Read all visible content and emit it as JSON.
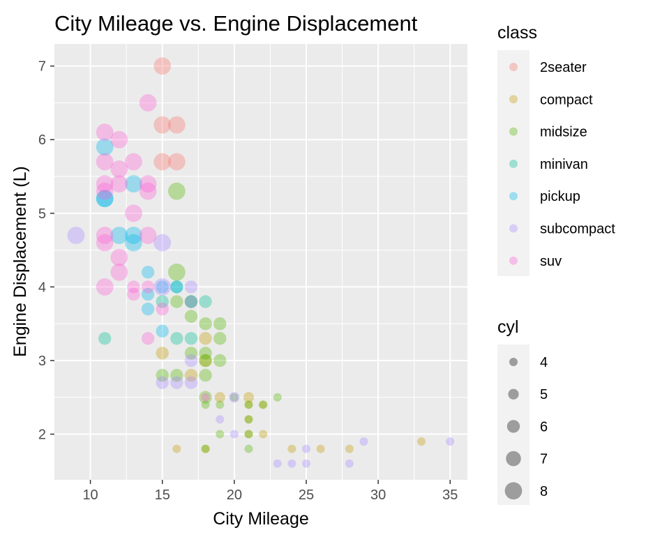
{
  "chart_data": {
    "type": "scatter",
    "title": "City Mileage vs. Engine Displacement",
    "xlabel": "City Mileage",
    "ylabel": "Engine Displacement (L)",
    "xlim": [
      7.5,
      36.2
    ],
    "ylim": [
      1.38,
      7.3
    ],
    "x_ticks": [
      10,
      15,
      20,
      25,
      30,
      35
    ],
    "y_ticks": [
      2,
      3,
      4,
      5,
      6,
      7
    ],
    "grid": true,
    "point_alpha": 0.35,
    "color_legend": {
      "title": "class",
      "entries": [
        {
          "name": "2seater",
          "color": "#F8766D"
        },
        {
          "name": "compact",
          "color": "#C49A00"
        },
        {
          "name": "midsize",
          "color": "#53B400"
        },
        {
          "name": "minivan",
          "color": "#00C094"
        },
        {
          "name": "pickup",
          "color": "#00B6EB"
        },
        {
          "name": "subcompact",
          "color": "#A58AFF"
        },
        {
          "name": "suv",
          "color": "#FB61D7"
        }
      ]
    },
    "size_legend": {
      "title": "cyl",
      "values": [
        4,
        5,
        6,
        7,
        8
      ]
    },
    "points": [
      {
        "x": 15,
        "y": 7.0,
        "class": "2seater",
        "cyl": 8
      },
      {
        "x": 15,
        "y": 6.2,
        "class": "2seater",
        "cyl": 8
      },
      {
        "x": 16,
        "y": 6.2,
        "class": "2seater",
        "cyl": 8
      },
      {
        "x": 15,
        "y": 5.7,
        "class": "2seater",
        "cyl": 8
      },
      {
        "x": 16,
        "y": 5.7,
        "class": "2seater",
        "cyl": 8
      },
      {
        "x": 16,
        "y": 1.8,
        "class": "compact",
        "cyl": 4
      },
      {
        "x": 18,
        "y": 1.8,
        "class": "compact",
        "cyl": 4
      },
      {
        "x": 21,
        "y": 2.0,
        "class": "compact",
        "cyl": 4
      },
      {
        "x": 22,
        "y": 2.0,
        "class": "compact",
        "cyl": 4
      },
      {
        "x": 21,
        "y": 2.2,
        "class": "compact",
        "cyl": 4
      },
      {
        "x": 21,
        "y": 2.4,
        "class": "compact",
        "cyl": 4
      },
      {
        "x": 22,
        "y": 2.4,
        "class": "compact",
        "cyl": 4
      },
      {
        "x": 24,
        "y": 1.8,
        "class": "compact",
        "cyl": 4
      },
      {
        "x": 26,
        "y": 1.8,
        "class": "compact",
        "cyl": 4
      },
      {
        "x": 28,
        "y": 1.8,
        "class": "compact",
        "cyl": 4
      },
      {
        "x": 33,
        "y": 1.9,
        "class": "compact",
        "cyl": 4
      },
      {
        "x": 19,
        "y": 2.5,
        "class": "compact",
        "cyl": 5
      },
      {
        "x": 21,
        "y": 2.5,
        "class": "compact",
        "cyl": 5
      },
      {
        "x": 15,
        "y": 3.1,
        "class": "compact",
        "cyl": 6
      },
      {
        "x": 17,
        "y": 2.8,
        "class": "compact",
        "cyl": 6
      },
      {
        "x": 18,
        "y": 3.3,
        "class": "compact",
        "cyl": 6
      },
      {
        "x": 18,
        "y": 3.0,
        "class": "compact",
        "cyl": 6
      },
      {
        "x": 18,
        "y": 2.4,
        "class": "midsize",
        "cyl": 4
      },
      {
        "x": 19,
        "y": 2.4,
        "class": "midsize",
        "cyl": 4
      },
      {
        "x": 21,
        "y": 2.4,
        "class": "midsize",
        "cyl": 4
      },
      {
        "x": 20,
        "y": 2.5,
        "class": "midsize",
        "cyl": 4
      },
      {
        "x": 23,
        "y": 2.5,
        "class": "midsize",
        "cyl": 4
      },
      {
        "x": 22,
        "y": 2.4,
        "class": "midsize",
        "cyl": 4
      },
      {
        "x": 19,
        "y": 2.0,
        "class": "midsize",
        "cyl": 4
      },
      {
        "x": 21,
        "y": 2.0,
        "class": "midsize",
        "cyl": 4
      },
      {
        "x": 18,
        "y": 1.8,
        "class": "midsize",
        "cyl": 4
      },
      {
        "x": 21,
        "y": 1.8,
        "class": "midsize",
        "cyl": 4
      },
      {
        "x": 21,
        "y": 2.2,
        "class": "midsize",
        "cyl": 4
      },
      {
        "x": 15,
        "y": 2.8,
        "class": "midsize",
        "cyl": 6
      },
      {
        "x": 16,
        "y": 2.8,
        "class": "midsize",
        "cyl": 6
      },
      {
        "x": 17,
        "y": 3.1,
        "class": "midsize",
        "cyl": 6
      },
      {
        "x": 17,
        "y": 3.6,
        "class": "midsize",
        "cyl": 6
      },
      {
        "x": 18,
        "y": 2.8,
        "class": "midsize",
        "cyl": 6
      },
      {
        "x": 18,
        "y": 3.0,
        "class": "midsize",
        "cyl": 6
      },
      {
        "x": 18,
        "y": 3.1,
        "class": "midsize",
        "cyl": 6
      },
      {
        "x": 18,
        "y": 3.5,
        "class": "midsize",
        "cyl": 6
      },
      {
        "x": 19,
        "y": 3.5,
        "class": "midsize",
        "cyl": 6
      },
      {
        "x": 19,
        "y": 3.3,
        "class": "midsize",
        "cyl": 6
      },
      {
        "x": 19,
        "y": 3.0,
        "class": "midsize",
        "cyl": 6
      },
      {
        "x": 17,
        "y": 3.8,
        "class": "midsize",
        "cyl": 6
      },
      {
        "x": 18,
        "y": 2.5,
        "class": "midsize",
        "cyl": 6
      },
      {
        "x": 16,
        "y": 3.8,
        "class": "midsize",
        "cyl": 6
      },
      {
        "x": 16,
        "y": 4.2,
        "class": "midsize",
        "cyl": 8
      },
      {
        "x": 16,
        "y": 5.3,
        "class": "midsize",
        "cyl": 8
      },
      {
        "x": 16,
        "y": 3.3,
        "class": "minivan",
        "cyl": 6
      },
      {
        "x": 17,
        "y": 3.3,
        "class": "minivan",
        "cyl": 6
      },
      {
        "x": 15,
        "y": 3.8,
        "class": "minivan",
        "cyl": 6
      },
      {
        "x": 17,
        "y": 3.8,
        "class": "minivan",
        "cyl": 6
      },
      {
        "x": 18,
        "y": 3.8,
        "class": "minivan",
        "cyl": 6
      },
      {
        "x": 16,
        "y": 4.0,
        "class": "minivan",
        "cyl": 6
      },
      {
        "x": 11,
        "y": 3.3,
        "class": "minivan",
        "cyl": 6
      },
      {
        "x": 14,
        "y": 3.7,
        "class": "pickup",
        "cyl": 6
      },
      {
        "x": 14,
        "y": 3.9,
        "class": "pickup",
        "cyl": 6
      },
      {
        "x": 14,
        "y": 4.2,
        "class": "pickup",
        "cyl": 6
      },
      {
        "x": 15,
        "y": 4.0,
        "class": "pickup",
        "cyl": 6
      },
      {
        "x": 16,
        "y": 4.0,
        "class": "pickup",
        "cyl": 6
      },
      {
        "x": 15,
        "y": 3.4,
        "class": "pickup",
        "cyl": 6
      },
      {
        "x": 12,
        "y": 4.7,
        "class": "pickup",
        "cyl": 8
      },
      {
        "x": 13,
        "y": 4.7,
        "class": "pickup",
        "cyl": 8
      },
      {
        "x": 13,
        "y": 5.4,
        "class": "pickup",
        "cyl": 8
      },
      {
        "x": 11,
        "y": 5.2,
        "class": "pickup",
        "cyl": 8
      },
      {
        "x": 11,
        "y": 5.2,
        "class": "pickup",
        "cyl": 8
      },
      {
        "x": 11,
        "y": 5.9,
        "class": "pickup",
        "cyl": 8
      },
      {
        "x": 13,
        "y": 4.6,
        "class": "pickup",
        "cyl": 8
      },
      {
        "x": 23,
        "y": 1.6,
        "class": "subcompact",
        "cyl": 4
      },
      {
        "x": 24,
        "y": 1.6,
        "class": "subcompact",
        "cyl": 4
      },
      {
        "x": 25,
        "y": 1.6,
        "class": "subcompact",
        "cyl": 4
      },
      {
        "x": 28,
        "y": 1.6,
        "class": "subcompact",
        "cyl": 4
      },
      {
        "x": 25,
        "y": 1.8,
        "class": "subcompact",
        "cyl": 4
      },
      {
        "x": 29,
        "y": 1.9,
        "class": "subcompact",
        "cyl": 4
      },
      {
        "x": 35,
        "y": 1.9,
        "class": "subcompact",
        "cyl": 4
      },
      {
        "x": 20,
        "y": 2.0,
        "class": "subcompact",
        "cyl": 4
      },
      {
        "x": 19,
        "y": 2.2,
        "class": "subcompact",
        "cyl": 4
      },
      {
        "x": 20,
        "y": 2.5,
        "class": "subcompact",
        "cyl": 5
      },
      {
        "x": 15,
        "y": 2.7,
        "class": "subcompact",
        "cyl": 6
      },
      {
        "x": 16,
        "y": 2.7,
        "class": "subcompact",
        "cyl": 6
      },
      {
        "x": 17,
        "y": 2.7,
        "class": "subcompact",
        "cyl": 6
      },
      {
        "x": 17,
        "y": 3.0,
        "class": "subcompact",
        "cyl": 6
      },
      {
        "x": 17,
        "y": 3.8,
        "class": "subcompact",
        "cyl": 6
      },
      {
        "x": 17,
        "y": 4.0,
        "class": "subcompact",
        "cyl": 6
      },
      {
        "x": 15,
        "y": 4.0,
        "class": "subcompact",
        "cyl": 8
      },
      {
        "x": 15,
        "y": 4.6,
        "class": "subcompact",
        "cyl": 8
      },
      {
        "x": 9,
        "y": 4.7,
        "class": "subcompact",
        "cyl": 8
      },
      {
        "x": 18,
        "y": 2.5,
        "class": "suv",
        "cyl": 4
      },
      {
        "x": 14,
        "y": 3.3,
        "class": "suv",
        "cyl": 6
      },
      {
        "x": 15,
        "y": 3.7,
        "class": "suv",
        "cyl": 6
      },
      {
        "x": 13,
        "y": 3.9,
        "class": "suv",
        "cyl": 6
      },
      {
        "x": 13,
        "y": 4.0,
        "class": "suv",
        "cyl": 6
      },
      {
        "x": 14,
        "y": 4.0,
        "class": "suv",
        "cyl": 6
      },
      {
        "x": 11,
        "y": 4.0,
        "class": "suv",
        "cyl": 8
      },
      {
        "x": 12,
        "y": 4.2,
        "class": "suv",
        "cyl": 8
      },
      {
        "x": 12,
        "y": 4.4,
        "class": "suv",
        "cyl": 8
      },
      {
        "x": 11,
        "y": 4.6,
        "class": "suv",
        "cyl": 8
      },
      {
        "x": 11,
        "y": 4.7,
        "class": "suv",
        "cyl": 8
      },
      {
        "x": 14,
        "y": 4.7,
        "class": "suv",
        "cyl": 8
      },
      {
        "x": 13,
        "y": 5.0,
        "class": "suv",
        "cyl": 8
      },
      {
        "x": 14,
        "y": 5.3,
        "class": "suv",
        "cyl": 8
      },
      {
        "x": 11,
        "y": 5.3,
        "class": "suv",
        "cyl": 8
      },
      {
        "x": 11,
        "y": 5.4,
        "class": "suv",
        "cyl": 8
      },
      {
        "x": 12,
        "y": 5.4,
        "class": "suv",
        "cyl": 8
      },
      {
        "x": 11,
        "y": 5.7,
        "class": "suv",
        "cyl": 8
      },
      {
        "x": 12,
        "y": 5.6,
        "class": "suv",
        "cyl": 8
      },
      {
        "x": 13,
        "y": 5.7,
        "class": "suv",
        "cyl": 8
      },
      {
        "x": 11,
        "y": 6.1,
        "class": "suv",
        "cyl": 8
      },
      {
        "x": 12,
        "y": 6.0,
        "class": "suv",
        "cyl": 8
      },
      {
        "x": 14,
        "y": 6.5,
        "class": "suv",
        "cyl": 8
      },
      {
        "x": 14,
        "y": 5.4,
        "class": "suv",
        "cyl": 8
      }
    ]
  }
}
